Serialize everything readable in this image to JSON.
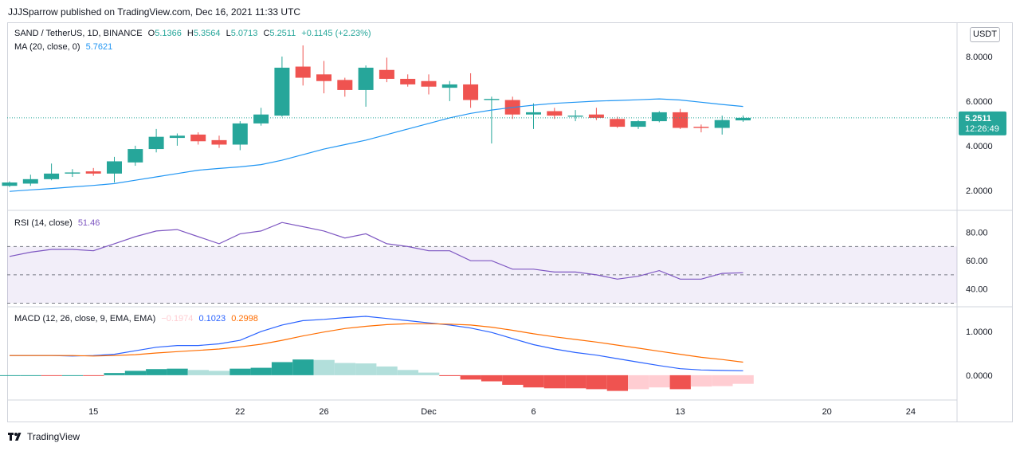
{
  "header": {
    "published": "JJJSparrow published on TradingView.com, Dec 16, 2021 11:33 UTC"
  },
  "brand": {
    "label": "TradingView",
    "icon": "tradingview-logo-icon"
  },
  "unit_button": "USDT",
  "legends": {
    "price": {
      "title": "SAND / TetherUS, 1D, BINANCE",
      "o_label": "O",
      "o": "5.1366",
      "h_label": "H",
      "h": "5.3564",
      "l_label": "L",
      "l": "5.0713",
      "c_label": "C",
      "c": "5.2511",
      "change": "+0.1145 (+2.23%)"
    },
    "ma": {
      "title": "MA (20, close, 0)",
      "value": "5.7621"
    },
    "rsi": {
      "title": "RSI (14, close)",
      "value": "51.46"
    },
    "macd": {
      "title": "MACD (12, 26, close, 9, EMA, EMA)",
      "hist": "−0.1974",
      "macd": "0.1023",
      "signal": "0.2998"
    }
  },
  "last_price": {
    "value": "5.2511",
    "countdown": "12:26:49"
  },
  "colors": {
    "up": "#26a69a",
    "down": "#ef5350",
    "ma": "#2196f3",
    "rsi": "#7e57c2",
    "macd": "#2962ff",
    "signal": "#ff6d00",
    "hist_up_strong": "#26a69a",
    "hist_up_weak": "#b2dfdb",
    "hist_down_strong": "#ef5350",
    "hist_down_weak": "#ffcdd2"
  },
  "chart_data": [
    {
      "type": "candlestick",
      "title": "SAND / TetherUS, 1D, BINANCE",
      "x_ticks": [
        "15",
        "22",
        "26",
        "Dec",
        "6",
        "13",
        "20",
        "24"
      ],
      "y_ticks": [
        "8.0000",
        "6.0000",
        "4.0000",
        "2.0000"
      ],
      "ylim": [
        1.1,
        9.5
      ],
      "candles": [
        {
          "date": "2021-11-11",
          "o": 2.2,
          "h": 2.4,
          "l": 2.15,
          "c": 2.35
        },
        {
          "date": "2021-11-12",
          "o": 2.3,
          "h": 2.7,
          "l": 2.2,
          "c": 2.5
        },
        {
          "date": "2021-11-13",
          "o": 2.5,
          "h": 3.2,
          "l": 2.45,
          "c": 2.75
        },
        {
          "date": "2021-11-14",
          "o": 2.75,
          "h": 2.95,
          "l": 2.6,
          "c": 2.8
        },
        {
          "date": "2021-11-15",
          "o": 2.85,
          "h": 3.0,
          "l": 2.65,
          "c": 2.75
        },
        {
          "date": "2021-11-16",
          "o": 2.75,
          "h": 3.5,
          "l": 2.35,
          "c": 3.3
        },
        {
          "date": "2021-11-17",
          "o": 3.25,
          "h": 4.0,
          "l": 3.1,
          "c": 3.85
        },
        {
          "date": "2021-11-18",
          "o": 3.85,
          "h": 4.75,
          "l": 3.7,
          "c": 4.4
        },
        {
          "date": "2021-11-19",
          "o": 4.35,
          "h": 4.55,
          "l": 4.0,
          "c": 4.45
        },
        {
          "date": "2021-11-20",
          "o": 4.5,
          "h": 4.6,
          "l": 4.05,
          "c": 4.2
        },
        {
          "date": "2021-11-21",
          "o": 4.25,
          "h": 4.45,
          "l": 3.9,
          "c": 4.05
        },
        {
          "date": "2021-11-22",
          "o": 4.05,
          "h": 5.1,
          "l": 3.8,
          "c": 5.0
        },
        {
          "date": "2021-11-23",
          "o": 5.0,
          "h": 5.7,
          "l": 4.9,
          "c": 5.4
        },
        {
          "date": "2021-11-24",
          "o": 5.35,
          "h": 8.0,
          "l": 5.3,
          "c": 7.5
        },
        {
          "date": "2021-11-25",
          "o": 7.55,
          "h": 8.5,
          "l": 6.7,
          "c": 7.05
        },
        {
          "date": "2021-11-26",
          "o": 7.2,
          "h": 7.8,
          "l": 6.35,
          "c": 6.9
        },
        {
          "date": "2021-11-27",
          "o": 6.95,
          "h": 7.05,
          "l": 6.2,
          "c": 6.5
        },
        {
          "date": "2021-11-28",
          "o": 6.5,
          "h": 7.6,
          "l": 5.75,
          "c": 7.5
        },
        {
          "date": "2021-11-29",
          "o": 7.4,
          "h": 7.95,
          "l": 6.85,
          "c": 7.0
        },
        {
          "date": "2021-11-30",
          "o": 7.0,
          "h": 7.2,
          "l": 6.65,
          "c": 6.75
        },
        {
          "date": "2021-12-01",
          "o": 6.9,
          "h": 7.2,
          "l": 6.3,
          "c": 6.65
        },
        {
          "date": "2021-12-02",
          "o": 6.6,
          "h": 6.9,
          "l": 6.0,
          "c": 6.75
        },
        {
          "date": "2021-12-03",
          "o": 6.75,
          "h": 7.25,
          "l": 5.7,
          "c": 6.05
        },
        {
          "date": "2021-12-04",
          "o": 6.05,
          "h": 6.2,
          "l": 4.1,
          "c": 6.1
        },
        {
          "date": "2021-12-05",
          "o": 6.05,
          "h": 6.2,
          "l": 5.2,
          "c": 5.4
        },
        {
          "date": "2021-12-06",
          "o": 5.4,
          "h": 5.9,
          "l": 4.75,
          "c": 5.5
        },
        {
          "date": "2021-12-07",
          "o": 5.55,
          "h": 5.7,
          "l": 5.2,
          "c": 5.35
        },
        {
          "date": "2021-12-08",
          "o": 5.3,
          "h": 5.6,
          "l": 5.1,
          "c": 5.35
        },
        {
          "date": "2021-12-09",
          "o": 5.4,
          "h": 5.7,
          "l": 5.15,
          "c": 5.25
        },
        {
          "date": "2021-12-10",
          "o": 5.2,
          "h": 5.3,
          "l": 4.8,
          "c": 4.85
        },
        {
          "date": "2021-12-11",
          "o": 4.85,
          "h": 5.15,
          "l": 4.75,
          "c": 5.1
        },
        {
          "date": "2021-12-12",
          "o": 5.1,
          "h": 5.55,
          "l": 5.05,
          "c": 5.5
        },
        {
          "date": "2021-12-13",
          "o": 5.5,
          "h": 5.65,
          "l": 4.75,
          "c": 4.8
        },
        {
          "date": "2021-12-14",
          "o": 4.85,
          "h": 4.95,
          "l": 4.6,
          "c": 4.8
        },
        {
          "date": "2021-12-15",
          "o": 4.8,
          "h": 5.35,
          "l": 4.5,
          "c": 5.15
        },
        {
          "date": "2021-12-16",
          "o": 5.1366,
          "h": 5.3564,
          "l": 5.0713,
          "c": 5.2511
        }
      ],
      "ma_20": [
        1.95,
        2.02,
        2.08,
        2.15,
        2.22,
        2.3,
        2.45,
        2.6,
        2.75,
        2.9,
        2.98,
        3.05,
        3.15,
        3.35,
        3.6,
        3.85,
        4.05,
        4.25,
        4.5,
        4.75,
        5.0,
        5.25,
        5.45,
        5.6,
        5.72,
        5.82,
        5.9,
        5.95,
        6.0,
        6.03,
        6.06,
        6.1,
        6.05,
        5.95,
        5.85,
        5.76
      ],
      "last_price_line": 5.2511
    },
    {
      "type": "line",
      "title": "RSI (14, close)",
      "y_ticks": [
        "80.00",
        "60.00",
        "40.00"
      ],
      "ylim": [
        28,
        95
      ],
      "levels": [
        70,
        50,
        30
      ],
      "values": [
        63,
        66,
        68,
        68,
        67,
        72,
        77,
        81,
        82,
        77,
        72,
        79,
        81,
        87,
        84,
        81,
        76,
        79,
        72,
        70,
        67,
        67,
        60,
        60,
        54,
        54,
        52,
        52,
        50,
        47,
        49,
        53,
        47,
        47,
        51,
        51.46
      ]
    },
    {
      "type": "bar+line",
      "title": "MACD (12, 26, close, 9, EMA, EMA)",
      "y_ticks": [
        "1.0000",
        "0.0000"
      ],
      "ylim": [
        -0.55,
        1.55
      ],
      "series": [
        {
          "name": "Histogram",
          "values": [
            0.0,
            0.0,
            -0.01,
            0.0,
            -0.01,
            0.05,
            0.1,
            0.14,
            0.15,
            0.12,
            0.1,
            0.15,
            0.17,
            0.3,
            0.36,
            0.35,
            0.28,
            0.27,
            0.2,
            0.12,
            0.06,
            -0.02,
            -0.1,
            -0.14,
            -0.22,
            -0.28,
            -0.3,
            -0.3,
            -0.32,
            -0.36,
            -0.32,
            -0.28,
            -0.32,
            -0.26,
            -0.25,
            -0.1974
          ]
        },
        {
          "name": "MACD",
          "values": [
            0.45,
            0.45,
            0.45,
            0.44,
            0.45,
            0.48,
            0.56,
            0.64,
            0.68,
            0.68,
            0.72,
            0.8,
            1.0,
            1.15,
            1.25,
            1.28,
            1.32,
            1.35,
            1.3,
            1.25,
            1.2,
            1.15,
            1.08,
            0.98,
            0.84,
            0.7,
            0.6,
            0.52,
            0.46,
            0.38,
            0.3,
            0.22,
            0.15,
            0.12,
            0.11,
            0.1023
          ]
        },
        {
          "name": "Signal",
          "values": [
            0.45,
            0.45,
            0.45,
            0.45,
            0.44,
            0.45,
            0.47,
            0.51,
            0.54,
            0.57,
            0.6,
            0.65,
            0.71,
            0.8,
            0.9,
            0.99,
            1.07,
            1.12,
            1.16,
            1.18,
            1.18,
            1.17,
            1.15,
            1.1,
            1.03,
            0.95,
            0.88,
            0.82,
            0.76,
            0.69,
            0.62,
            0.55,
            0.48,
            0.41,
            0.36,
            0.2998
          ]
        }
      ]
    }
  ]
}
